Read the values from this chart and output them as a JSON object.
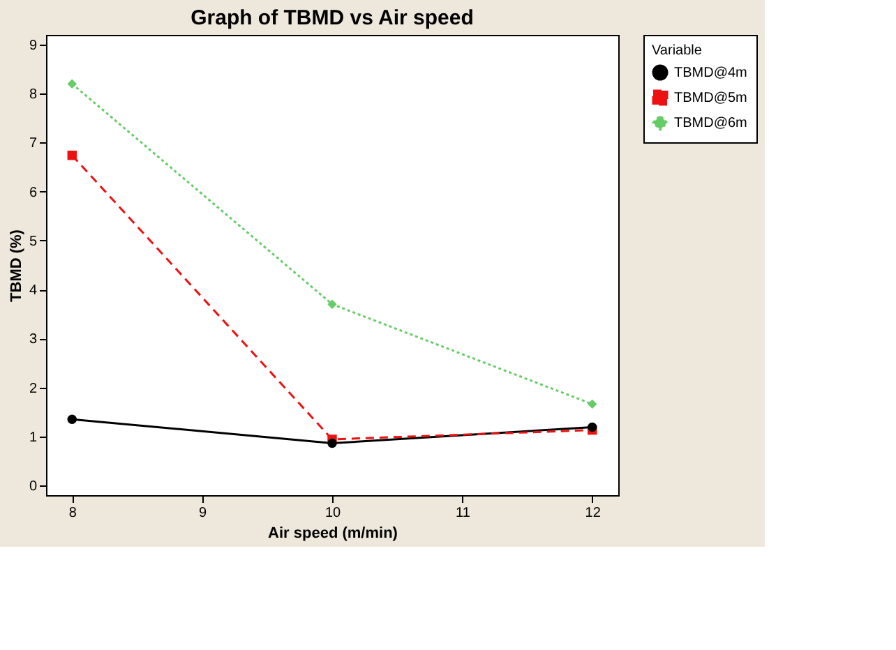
{
  "chart_data": {
    "type": "line",
    "title": "Graph of TBMD vs Air speed",
    "xlabel": "Air speed (m/min)",
    "ylabel": "TBMD (%)",
    "legend_title": "Variable",
    "legend": "top right",
    "grid": false,
    "x": [
      8,
      10,
      12
    ],
    "xlim": [
      7.8,
      12.2
    ],
    "xticks": [
      8,
      9,
      10,
      11,
      12
    ],
    "ylim": [
      -0.2,
      9.2
    ],
    "yticks": [
      0,
      1,
      2,
      3,
      4,
      5,
      6,
      7,
      8,
      9
    ],
    "series": [
      {
        "name": "TBMD@4m",
        "color": "#000000",
        "marker": "circle",
        "line_style": "solid",
        "values": [
          1.35,
          0.86,
          1.19
        ]
      },
      {
        "name": "TBMD@5m",
        "color": "#ee1111",
        "marker": "square",
        "line_style": "dashed",
        "values": [
          6.74,
          0.94,
          1.13
        ]
      },
      {
        "name": "TBMD@6m",
        "color": "#66cc66",
        "marker": "diamond",
        "line_style": "dotted",
        "values": [
          8.2,
          3.7,
          1.66
        ]
      }
    ]
  }
}
